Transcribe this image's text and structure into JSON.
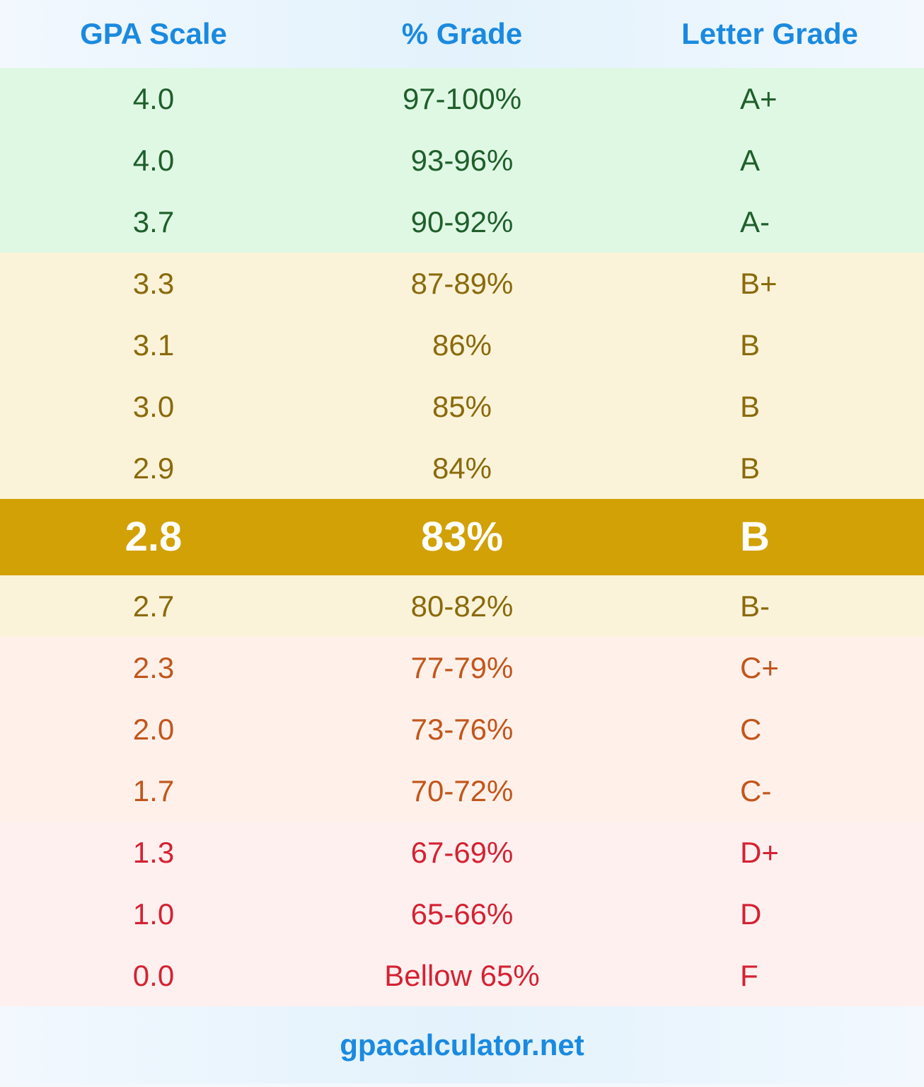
{
  "header": {
    "columns": [
      "GPA Scale",
      "% Grade",
      "Letter Grade"
    ]
  },
  "table": {
    "groups": [
      {
        "background": "#dff8e4",
        "color": "#1f5f2b",
        "rows": [
          [
            "4.0",
            "97-100%",
            "A+"
          ],
          [
            "4.0",
            "93-96%",
            "A"
          ],
          [
            "3.7",
            "90-92%",
            "A-"
          ]
        ]
      },
      {
        "background": "#fbf3d9",
        "color": "#8a6a0c",
        "rows": [
          [
            "3.3",
            "87-89%",
            "B+"
          ],
          [
            "3.1",
            "86%",
            "B"
          ],
          [
            "3.0",
            "85%",
            "B"
          ],
          [
            "2.9",
            "84%",
            "B"
          ]
        ]
      },
      {
        "background": "#d1a106",
        "color": "#ffffff",
        "highlighted": true,
        "rows": [
          [
            "2.8",
            "83%",
            "B"
          ]
        ]
      },
      {
        "background": "#fbf3d9",
        "color": "#8a6a0c",
        "rows": [
          [
            "2.7",
            "80-82%",
            "B-"
          ]
        ]
      },
      {
        "background": "#fff1ea",
        "color": "#c2561c",
        "rows": [
          [
            "2.3",
            "77-79%",
            "C+"
          ],
          [
            "2.0",
            "73-76%",
            "C"
          ],
          [
            "1.7",
            "70-72%",
            "C-"
          ]
        ]
      },
      {
        "background": "#fff0f0",
        "color": "#d42232",
        "rows": [
          [
            "1.3",
            "67-69%",
            "D+"
          ],
          [
            "1.0",
            "65-66%",
            "D"
          ],
          [
            "0.0",
            "Bellow 65%",
            "F"
          ]
        ]
      }
    ]
  },
  "footer": {
    "text": "gpacalculator.net"
  }
}
